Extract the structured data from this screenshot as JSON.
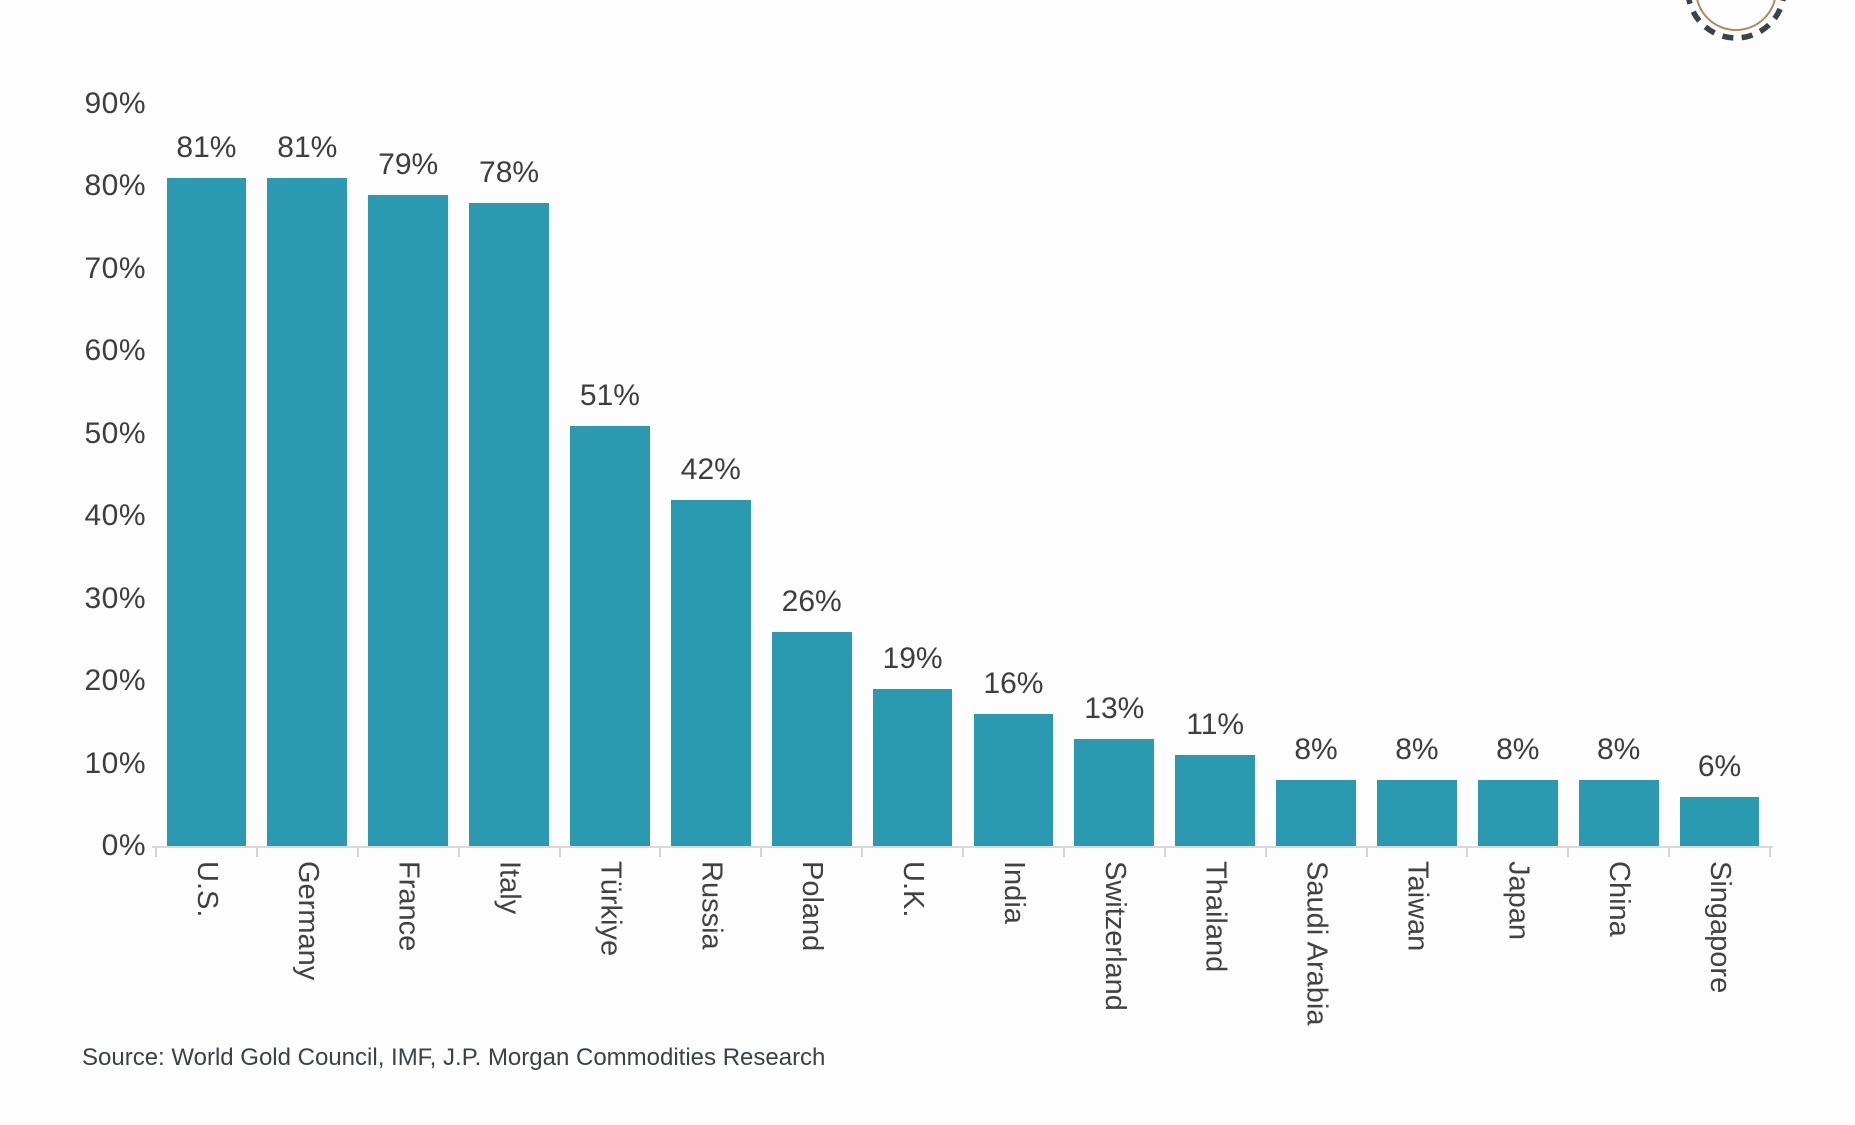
{
  "chart_data": {
    "type": "bar",
    "title": "",
    "categories": [
      "U.S.",
      "Germany",
      "France",
      "Italy",
      "Türkiye",
      "Russia",
      "Poland",
      "U.K.",
      "India",
      "Switzerland",
      "Thailand",
      "Saudi Arabia",
      "Taiwan",
      "Japan",
      "China",
      "Singapore"
    ],
    "values": [
      81,
      81,
      79,
      78,
      51,
      42,
      26,
      19,
      16,
      13,
      11,
      8,
      8,
      8,
      8,
      6
    ],
    "value_labels": [
      "81%",
      "81%",
      "79%",
      "78%",
      "51%",
      "42%",
      "26%",
      "19%",
      "16%",
      "13%",
      "11%",
      "8%",
      "8%",
      "8%",
      "8%",
      "6%"
    ],
    "y_ticks": [
      "0%",
      "10%",
      "20%",
      "30%",
      "40%",
      "50%",
      "60%",
      "70%",
      "80%",
      "90%"
    ],
    "ylim": [
      0,
      90
    ],
    "grid": false,
    "legend_position": "none",
    "xlabel": "",
    "ylabel": ""
  },
  "source": {
    "text": "Source: World Gold Council, IMF, J.P. Morgan Commodities Research"
  },
  "colors": {
    "bar": "#2a9ab0",
    "axis": "#d9d9d9",
    "text": "#3e3e3e",
    "badge_dash": "#36444e",
    "badge_inner_ring": "#b5885a"
  }
}
